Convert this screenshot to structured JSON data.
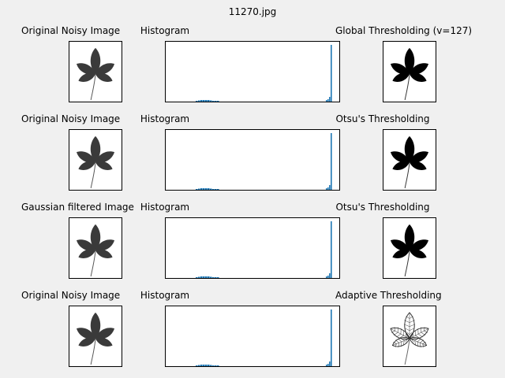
{
  "suptitle": "11270.jpg",
  "rows": [
    {
      "left_title": "Original Noisy Image",
      "hist_title": "Histogram",
      "right_title": "Global Thresholding (v=127)",
      "right_kind": "binary"
    },
    {
      "left_title": "Original Noisy Image",
      "hist_title": "Histogram",
      "right_title": "Otsu's Thresholding",
      "right_kind": "binary"
    },
    {
      "left_title": "Gaussian filtered Image",
      "hist_title": "Histogram",
      "right_title": "Otsu's Thresholding",
      "right_kind": "binary"
    },
    {
      "left_title": "Original Noisy Image",
      "hist_title": "Histogram",
      "right_title": "Adaptive Thresholding",
      "right_kind": "adaptive"
    }
  ],
  "colors": {
    "figure_bg": "#f0f0f0",
    "leaf_gray": "#3a3a3a",
    "binary_black": "#000000",
    "hist_bar": "#1f77b4"
  }
}
